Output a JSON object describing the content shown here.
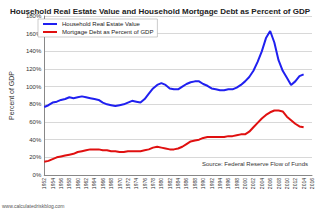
{
  "chart_data": {
    "type": "line",
    "title": "Household Real Estate Value and Household Mortgage Debt as Percent of GDP",
    "y_label": "Percent of GDP",
    "categories": [
      "1952",
      null,
      "1954",
      null,
      "1956",
      null,
      "1958",
      null,
      "1960",
      null,
      "1962",
      null,
      "1964",
      null,
      "1966",
      null,
      "1968",
      null,
      "1970",
      null,
      "1972",
      null,
      "1974",
      null,
      "1976",
      null,
      "1978",
      null,
      "1980",
      null,
      "1982",
      null,
      "1984",
      null,
      "1986",
      null,
      "1988",
      null,
      "1990",
      null,
      "1992",
      null,
      "1994",
      null,
      "1996",
      null,
      "1998",
      null,
      "2000",
      null,
      "2002",
      null,
      "2004",
      null,
      "2006",
      null,
      "2008",
      null,
      "2010",
      null,
      "2012",
      null,
      "2014",
      null,
      "2016"
    ],
    "series": [
      {
        "name": "Household Real Estate Value",
        "color": "#2020f0",
        "values": [
          77,
          79,
          82,
          83,
          85,
          86,
          88,
          87,
          88,
          89,
          88,
          87,
          86,
          85,
          82,
          80,
          79,
          78,
          79,
          80,
          82,
          84,
          83,
          82,
          86,
          92,
          98,
          102,
          104,
          102,
          98,
          97,
          97,
          100,
          103,
          105,
          106,
          106,
          103,
          101,
          98,
          97,
          96,
          96,
          97,
          97,
          99,
          102,
          106,
          111,
          118,
          128,
          140,
          155,
          163,
          150,
          130,
          118,
          110,
          102,
          106,
          112,
          114,
          null,
          null
        ]
      },
      {
        "name": "Mortgage Debt as Percent of GDP",
        "color": "#e01010",
        "values": [
          15,
          16,
          18,
          20,
          21,
          22,
          23,
          24,
          26,
          27,
          28,
          29,
          29,
          29,
          28,
          28,
          27,
          27,
          26,
          26,
          27,
          27,
          27,
          27,
          28,
          29,
          31,
          32,
          31,
          30,
          29,
          29,
          30,
          32,
          35,
          38,
          39,
          40,
          42,
          43,
          43,
          43,
          43,
          43,
          44,
          44,
          45,
          46,
          46,
          49,
          54,
          59,
          64,
          68,
          71,
          73,
          73,
          72,
          66,
          62,
          58,
          55,
          54,
          null,
          null
        ]
      }
    ],
    "ylim": [
      0,
      180
    ],
    "yticks": [
      {
        "value": 0,
        "label": "0%"
      },
      {
        "value": 20,
        "label": "20%"
      },
      {
        "value": 40,
        "label": "40%"
      },
      {
        "value": 60,
        "label": "60%"
      },
      {
        "value": 80,
        "label": "80%"
      },
      {
        "value": 100,
        "label": "100%"
      },
      {
        "value": 120,
        "label": "120%"
      },
      {
        "value": 140,
        "label": "140%"
      },
      {
        "value": 160,
        "label": "160%"
      },
      {
        "value": 180,
        "label": "180%"
      }
    ],
    "grid": true,
    "legend": "top-left",
    "annotations": [
      "Source: Federal Reserve Flow of Funds",
      "www.calculatedriskblog.com"
    ]
  }
}
